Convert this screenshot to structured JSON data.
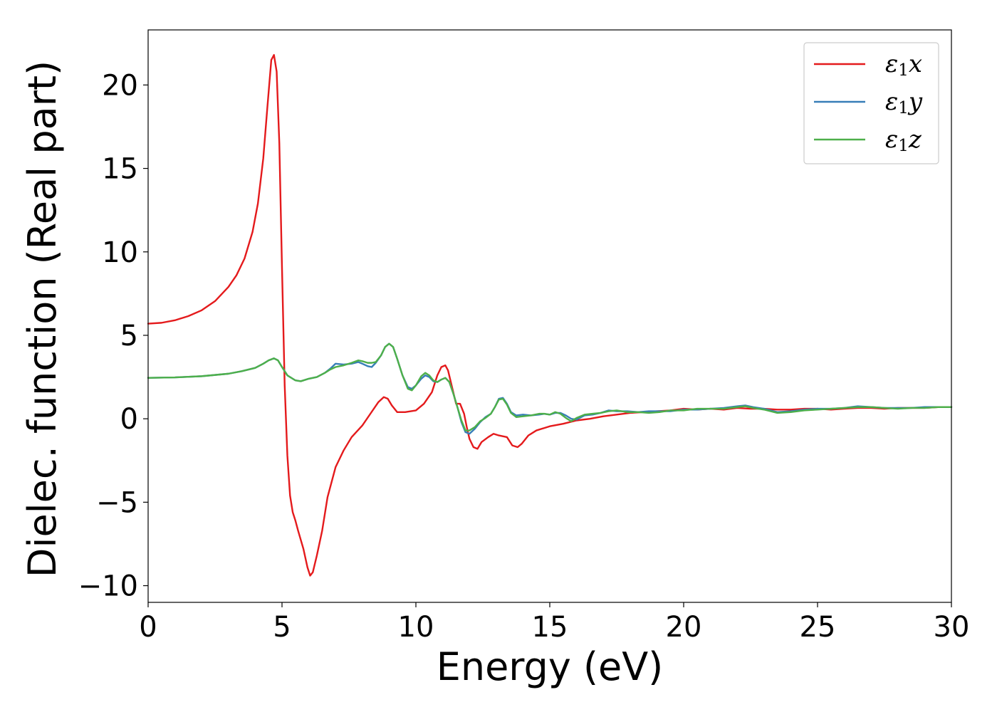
{
  "chart_data": {
    "type": "line",
    "title": "",
    "xlabel": "Energy (eV)",
    "ylabel": "Dielec. function (Real part)",
    "xlim": [
      0,
      30
    ],
    "ylim": [
      -11,
      23.3
    ],
    "xticks": [
      0,
      5,
      10,
      15,
      20,
      25,
      30
    ],
    "xtick_labels": [
      "0",
      "5",
      "10",
      "15",
      "20",
      "25",
      "30"
    ],
    "yticks": [
      -10,
      -5,
      0,
      5,
      10,
      15,
      20
    ],
    "ytick_labels": [
      "−10",
      "−5",
      "0",
      "5",
      "10",
      "15",
      "20"
    ],
    "grid": false,
    "legend_position": "top-right",
    "series": [
      {
        "name": "ε1x",
        "legend": {
          "symbol": "ε",
          "sub": "1",
          "var": "x"
        },
        "color": "#e41a1c",
        "x": [
          0,
          0.5,
          1,
          1.5,
          2,
          2.5,
          3,
          3.3,
          3.6,
          3.9,
          4.1,
          4.3,
          4.45,
          4.6,
          4.7,
          4.8,
          4.9,
          5.0,
          5.1,
          5.2,
          5.3,
          5.4,
          5.5,
          5.6,
          5.8,
          5.95,
          6.05,
          6.15,
          6.3,
          6.5,
          6.7,
          7.0,
          7.3,
          7.6,
          8.0,
          8.3,
          8.6,
          8.8,
          8.95,
          9.1,
          9.3,
          9.6,
          10.0,
          10.3,
          10.6,
          10.8,
          10.95,
          11.1,
          11.2,
          11.35,
          11.5,
          11.65,
          11.8,
          11.9,
          12.0,
          12.15,
          12.3,
          12.45,
          12.7,
          12.9,
          13.1,
          13.4,
          13.6,
          13.8,
          13.95,
          14.2,
          14.5,
          15.0,
          15.5,
          16.0,
          16.5,
          17.0,
          17.5,
          18.0,
          18.5,
          19.0,
          19.5,
          20.0,
          20.5,
          21.0,
          21.5,
          22.0,
          22.5,
          23.0,
          23.5,
          24.0,
          24.5,
          25.0,
          25.5,
          26.0,
          26.5,
          27.0,
          27.5,
          28.0,
          28.5,
          29.0,
          29.5,
          30.0
        ],
        "y": [
          5.7,
          5.75,
          5.9,
          6.15,
          6.5,
          7.05,
          7.9,
          8.6,
          9.6,
          11.2,
          12.9,
          15.6,
          18.6,
          21.5,
          21.8,
          20.8,
          16.5,
          9.0,
          2.0,
          -2.2,
          -4.6,
          -5.6,
          -6.1,
          -6.7,
          -7.8,
          -8.9,
          -9.4,
          -9.2,
          -8.2,
          -6.7,
          -4.7,
          -2.9,
          -1.9,
          -1.1,
          -0.4,
          0.3,
          1.0,
          1.3,
          1.2,
          0.8,
          0.4,
          0.4,
          0.5,
          0.9,
          1.6,
          2.6,
          3.1,
          3.2,
          2.9,
          1.9,
          0.9,
          0.9,
          0.3,
          -0.5,
          -1.2,
          -1.7,
          -1.8,
          -1.4,
          -1.1,
          -0.9,
          -1.0,
          -1.1,
          -1.6,
          -1.7,
          -1.5,
          -1.0,
          -0.7,
          -0.45,
          -0.3,
          -0.1,
          0.0,
          0.15,
          0.25,
          0.35,
          0.4,
          0.45,
          0.5,
          0.6,
          0.55,
          0.6,
          0.55,
          0.65,
          0.6,
          0.6,
          0.55,
          0.55,
          0.6,
          0.6,
          0.55,
          0.6,
          0.65,
          0.65,
          0.6,
          0.65,
          0.65,
          0.65,
          0.7,
          0.7
        ]
      },
      {
        "name": "ε1y",
        "legend": {
          "symbol": "ε",
          "sub": "1",
          "var": "y"
        },
        "color": "#377eb8",
        "x": [
          0,
          1,
          2,
          3,
          3.5,
          4.0,
          4.3,
          4.5,
          4.7,
          4.85,
          5.0,
          5.2,
          5.5,
          5.7,
          6.0,
          6.3,
          6.6,
          6.8,
          7.0,
          7.3,
          7.6,
          7.85,
          8.0,
          8.2,
          8.35,
          8.5,
          8.7,
          8.85,
          9.0,
          9.15,
          9.3,
          9.5,
          9.7,
          9.85,
          10.0,
          10.2,
          10.35,
          10.5,
          10.65,
          10.8,
          10.95,
          11.1,
          11.25,
          11.4,
          11.55,
          11.7,
          11.85,
          12.0,
          12.2,
          12.4,
          12.6,
          12.8,
          12.95,
          13.1,
          13.25,
          13.4,
          13.55,
          13.75,
          14.0,
          14.3,
          14.6,
          14.8,
          15.0,
          15.2,
          15.4,
          15.6,
          15.8,
          16.0,
          16.3,
          16.6,
          16.9,
          17.2,
          17.5,
          17.9,
          18.3,
          18.7,
          19.1,
          19.5,
          20.0,
          20.5,
          21.0,
          21.5,
          22.0,
          22.3,
          22.6,
          23.0,
          23.5,
          24.0,
          24.5,
          25.0,
          25.5,
          26.0,
          26.5,
          27.0,
          27.5,
          28.0,
          28.5,
          29.0,
          29.5,
          30.0
        ],
        "y": [
          2.45,
          2.48,
          2.55,
          2.7,
          2.85,
          3.05,
          3.3,
          3.5,
          3.62,
          3.5,
          3.1,
          2.6,
          2.3,
          2.25,
          2.4,
          2.5,
          2.75,
          3.0,
          3.3,
          3.25,
          3.3,
          3.4,
          3.3,
          3.15,
          3.1,
          3.35,
          3.8,
          4.3,
          4.5,
          4.3,
          3.6,
          2.6,
          1.9,
          1.8,
          2.0,
          2.4,
          2.6,
          2.5,
          2.25,
          2.2,
          2.35,
          2.45,
          2.2,
          1.5,
          0.7,
          -0.2,
          -0.8,
          -0.9,
          -0.6,
          -0.2,
          0.1,
          0.3,
          0.7,
          1.2,
          1.25,
          0.9,
          0.4,
          0.2,
          0.25,
          0.2,
          0.25,
          0.3,
          0.25,
          0.35,
          0.35,
          0.2,
          0.0,
          -0.05,
          0.2,
          0.25,
          0.35,
          0.5,
          0.45,
          0.45,
          0.4,
          0.45,
          0.45,
          0.45,
          0.55,
          0.55,
          0.6,
          0.65,
          0.75,
          0.8,
          0.7,
          0.6,
          0.4,
          0.45,
          0.55,
          0.6,
          0.6,
          0.65,
          0.75,
          0.7,
          0.65,
          0.65,
          0.65,
          0.7,
          0.7,
          0.7
        ]
      },
      {
        "name": "ε1z",
        "legend": {
          "symbol": "ε",
          "sub": "1",
          "var": "z"
        },
        "color": "#4daf4a",
        "x": [
          0,
          1,
          2,
          3,
          3.5,
          4.0,
          4.3,
          4.5,
          4.7,
          4.85,
          5.0,
          5.2,
          5.5,
          5.7,
          6.0,
          6.3,
          6.6,
          6.8,
          7.0,
          7.3,
          7.6,
          7.85,
          8.0,
          8.2,
          8.35,
          8.5,
          8.7,
          8.85,
          9.0,
          9.15,
          9.3,
          9.5,
          9.7,
          9.85,
          10.0,
          10.2,
          10.35,
          10.5,
          10.65,
          10.8,
          10.95,
          11.1,
          11.25,
          11.4,
          11.55,
          11.7,
          11.85,
          12.0,
          12.2,
          12.4,
          12.6,
          12.8,
          12.95,
          13.1,
          13.25,
          13.4,
          13.55,
          13.75,
          14.0,
          14.3,
          14.6,
          14.8,
          15.0,
          15.2,
          15.4,
          15.6,
          15.8,
          16.0,
          16.3,
          16.6,
          16.9,
          17.2,
          17.5,
          17.9,
          18.3,
          18.7,
          19.1,
          19.5,
          20.0,
          20.5,
          21.0,
          21.5,
          22.0,
          22.3,
          22.6,
          23.0,
          23.5,
          24.0,
          24.5,
          25.0,
          25.5,
          26.0,
          26.5,
          27.0,
          27.5,
          28.0,
          28.5,
          29.0,
          29.5,
          30.0
        ],
        "y": [
          2.45,
          2.48,
          2.55,
          2.7,
          2.85,
          3.05,
          3.3,
          3.5,
          3.62,
          3.5,
          3.1,
          2.6,
          2.3,
          2.25,
          2.4,
          2.5,
          2.75,
          2.95,
          3.1,
          3.2,
          3.35,
          3.5,
          3.45,
          3.35,
          3.35,
          3.4,
          3.8,
          4.3,
          4.5,
          4.3,
          3.6,
          2.6,
          1.8,
          1.7,
          2.0,
          2.55,
          2.75,
          2.6,
          2.3,
          2.2,
          2.35,
          2.45,
          2.2,
          1.5,
          0.7,
          -0.1,
          -0.7,
          -0.7,
          -0.5,
          -0.15,
          0.05,
          0.3,
          0.7,
          1.15,
          1.2,
          0.85,
          0.35,
          0.1,
          0.15,
          0.2,
          0.3,
          0.3,
          0.25,
          0.4,
          0.3,
          0.05,
          -0.15,
          0.05,
          0.25,
          0.3,
          0.35,
          0.45,
          0.5,
          0.4,
          0.4,
          0.35,
          0.4,
          0.5,
          0.5,
          0.6,
          0.6,
          0.6,
          0.7,
          0.75,
          0.65,
          0.55,
          0.35,
          0.4,
          0.5,
          0.55,
          0.6,
          0.65,
          0.7,
          0.7,
          0.65,
          0.6,
          0.65,
          0.65,
          0.7,
          0.7
        ]
      }
    ]
  }
}
